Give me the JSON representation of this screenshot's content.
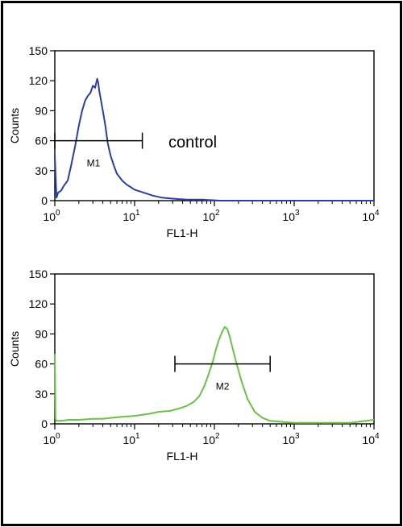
{
  "chart_data": [
    {
      "type": "line",
      "xscale": "log",
      "xlim": [
        1,
        10000
      ],
      "ylim": [
        0,
        150
      ],
      "xlabel": "FL1-H",
      "ylabel": "Counts",
      "xticks": [
        {
          "value": 1,
          "base": "10",
          "exp": "0"
        },
        {
          "value": 10,
          "base": "10",
          "exp": "1"
        },
        {
          "value": 100,
          "base": "10",
          "exp": "2"
        },
        {
          "value": 1000,
          "base": "10",
          "exp": "3"
        },
        {
          "value": 10000,
          "base": "10",
          "exp": "4"
        }
      ],
      "yticks": [
        0,
        30,
        60,
        90,
        120,
        150
      ],
      "series": [
        {
          "color": "#2a3ea3",
          "x": [
            1.0,
            1.05,
            1.1,
            1.2,
            1.3,
            1.45,
            1.6,
            1.8,
            2.0,
            2.2,
            2.4,
            2.6,
            2.8,
            3.0,
            3.2,
            3.4,
            3.5,
            3.6,
            3.8,
            4.0,
            4.3,
            4.6,
            5.0,
            5.5,
            6.0,
            7.0,
            8.0,
            10,
            13,
            17,
            22,
            30,
            45,
            70,
            120,
            300,
            1000,
            10000
          ],
          "y": [
            45,
            3,
            8,
            10,
            15,
            20,
            35,
            55,
            75,
            90,
            100,
            105,
            108,
            115,
            113,
            122,
            118,
            110,
            100,
            90,
            75,
            58,
            45,
            35,
            27,
            20,
            16,
            11,
            8,
            5,
            3,
            2,
            1,
            1,
            0,
            0,
            0,
            0
          ]
        }
      ],
      "markers": [
        {
          "label": "M1",
          "x_start": 1.0,
          "x_end": 12.5,
          "y": 60
        }
      ],
      "annotation": "control"
    },
    {
      "type": "line",
      "xscale": "log",
      "xlim": [
        1,
        10000
      ],
      "ylim": [
        0,
        150
      ],
      "xlabel": "FL1-H",
      "ylabel": "Counts",
      "xticks": [
        {
          "value": 1,
          "base": "10",
          "exp": "0"
        },
        {
          "value": 10,
          "base": "10",
          "exp": "1"
        },
        {
          "value": 100,
          "base": "10",
          "exp": "2"
        },
        {
          "value": 1000,
          "base": "10",
          "exp": "3"
        },
        {
          "value": 10000,
          "base": "10",
          "exp": "4"
        }
      ],
      "yticks": [
        0,
        30,
        60,
        90,
        120,
        150
      ],
      "series": [
        {
          "color": "#6cc04a",
          "x": [
            1.0,
            1.02,
            1.05,
            1.2,
            1.5,
            2,
            3,
            4,
            5,
            7,
            10,
            15,
            20,
            28,
            35,
            45,
            55,
            65,
            75,
            85,
            95,
            105,
            115,
            125,
            135,
            145,
            155,
            170,
            190,
            220,
            260,
            320,
            400,
            500,
            700,
            1000,
            2000,
            5000,
            10000
          ],
          "y": [
            70,
            5,
            3,
            3,
            4,
            4,
            5,
            5,
            6,
            7,
            8,
            10,
            12,
            13,
            15,
            18,
            22,
            28,
            38,
            50,
            62,
            75,
            85,
            92,
            97,
            95,
            88,
            75,
            60,
            42,
            25,
            12,
            6,
            3,
            2,
            1,
            1,
            1,
            4
          ]
        }
      ],
      "markers": [
        {
          "label": "M2",
          "x_start": 32,
          "x_end": 500,
          "y": 60
        }
      ]
    }
  ]
}
